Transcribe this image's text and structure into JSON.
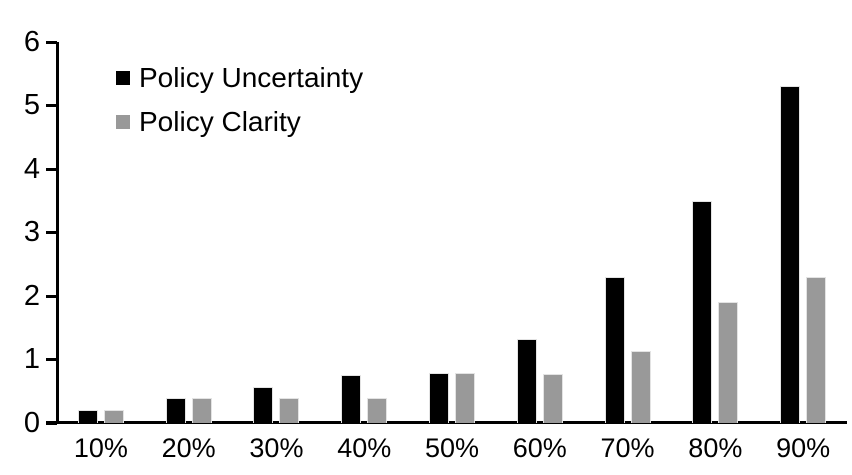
{
  "chart_data": {
    "type": "bar",
    "title": "",
    "xlabel": "",
    "ylabel": "",
    "categories": [
      "10%",
      "20%",
      "30%",
      "40%",
      "50%",
      "60%",
      "70%",
      "80%",
      "90%"
    ],
    "series": [
      {
        "name": "Policy Uncertainty",
        "color": "#000000",
        "values": [
          0.2,
          0.4,
          0.57,
          0.76,
          0.78,
          1.33,
          2.3,
          3.5,
          5.3
        ]
      },
      {
        "name": "Policy Clarity",
        "color": "#999999",
        "values": [
          0.2,
          0.4,
          0.4,
          0.4,
          0.78,
          0.77,
          1.13,
          1.9,
          2.3
        ]
      }
    ],
    "ylim": [
      0,
      6
    ],
    "yticks": [
      0,
      1,
      2,
      3,
      4,
      5,
      6
    ],
    "grid": false,
    "legend_position": "top-left-inside",
    "axis_color": "#000000"
  }
}
